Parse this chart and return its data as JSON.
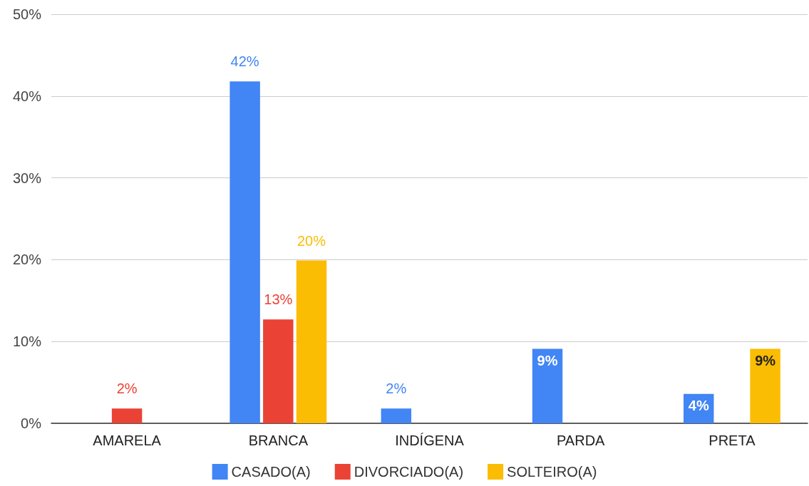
{
  "chart_data": {
    "type": "bar",
    "categories": [
      "AMARELA",
      "BRANCA",
      "INDÍGENA",
      "PARDA",
      "PRETA"
    ],
    "series": [
      {
        "name": "CASADO(A)",
        "color": "#4285f4",
        "values": [
          null,
          41.8,
          1.8,
          9.1,
          3.6
        ],
        "value_labels": [
          null,
          "42%",
          "2%",
          "9%",
          "4%"
        ]
      },
      {
        "name": "DIVORCIADO(A)",
        "color": "#ea4335",
        "values": [
          1.8,
          12.7,
          null,
          null,
          null
        ],
        "value_labels": [
          "2%",
          "13%",
          null,
          null,
          null
        ]
      },
      {
        "name": "SOLTEIRO(A)",
        "color": "#fbbc04",
        "values": [
          null,
          19.9,
          null,
          null,
          9.1
        ],
        "value_labels": [
          null,
          "20%",
          null,
          null,
          "9%"
        ]
      }
    ],
    "ylim": [
      0,
      50
    ],
    "yticks": [
      {
        "value": 0,
        "label": "0%"
      },
      {
        "value": 10,
        "label": "10%"
      },
      {
        "value": 20,
        "label": "20%"
      },
      {
        "value": 30,
        "label": "30%"
      },
      {
        "value": 40,
        "label": "40%"
      },
      {
        "value": 50,
        "label": "50%"
      }
    ],
    "grid": "y",
    "legend": "bottom"
  }
}
